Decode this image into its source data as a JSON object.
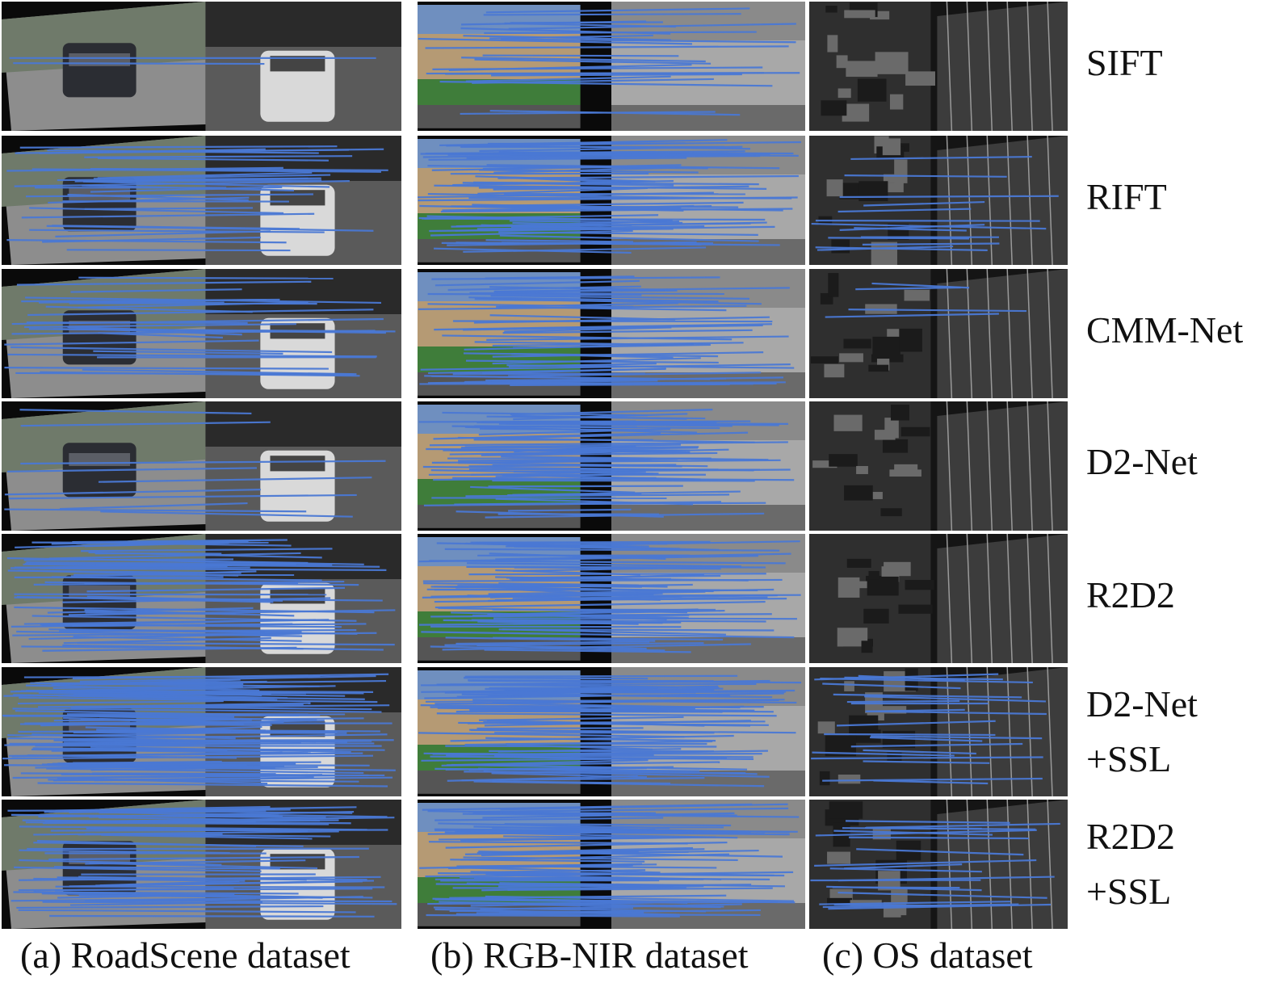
{
  "methods": [
    {
      "label": "SIFT",
      "density": {
        "road": 2,
        "rgb": 26,
        "os": 0
      }
    },
    {
      "label": "RIFT",
      "density": {
        "road": 34,
        "rgb": 70,
        "os": 14
      }
    },
    {
      "label": "CMM-Net",
      "density": {
        "road": 30,
        "rgb": 50,
        "os": 4
      }
    },
    {
      "label": "D2-Net",
      "density": {
        "road": 10,
        "rgb": 65,
        "os": 0
      }
    },
    {
      "label": "R2D2",
      "density": {
        "road": 60,
        "rgb": 70,
        "os": 0
      }
    },
    {
      "label": "D2-Net\n+SSL",
      "density": {
        "road": 95,
        "rgb": 80,
        "os": 22
      }
    },
    {
      "label": "R2D2\n+SSL",
      "density": {
        "road": 60,
        "rgb": 75,
        "os": 20
      }
    }
  ],
  "columns": [
    {
      "key": "road",
      "caption": "(a) RoadScene dataset"
    },
    {
      "key": "rgb",
      "caption": "(b) RGB-NIR dataset"
    },
    {
      "key": "os",
      "caption": "(c) OS dataset"
    }
  ],
  "colors": {
    "match_line": "#4a78d4",
    "background": "#ffffff"
  }
}
